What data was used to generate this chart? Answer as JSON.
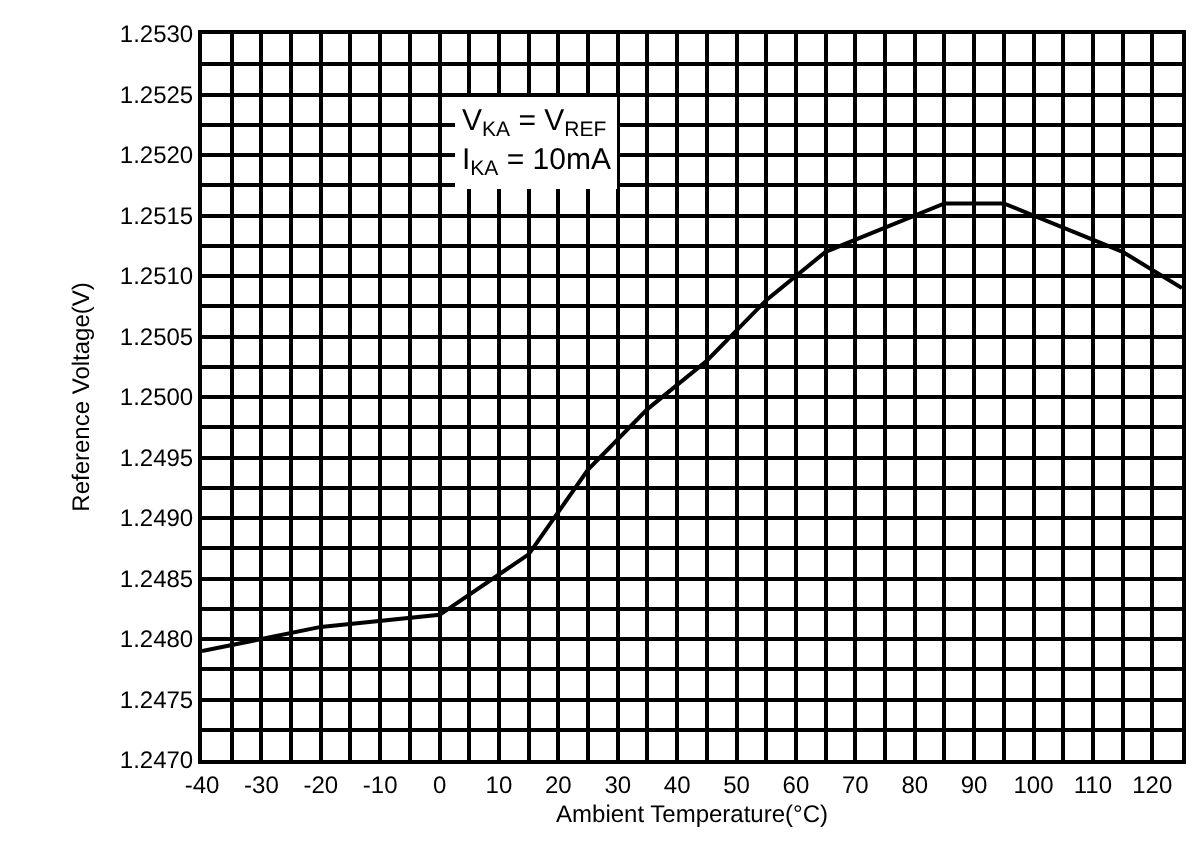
{
  "chart_data": {
    "type": "line",
    "xlabel": "Ambient Temperature(°C)",
    "ylabel": "Reference Voltage(V)",
    "annotations": [
      "V$_{KA}$ = V$_{REF}$\nI$_{KA}$ = 10mA"
    ],
    "x": [
      -40,
      -30,
      -20,
      0,
      15,
      25,
      35,
      45,
      55,
      65,
      85,
      95,
      115,
      125
    ],
    "series": [
      {
        "color": "#000000",
        "values": [
          1.2479,
          1.248,
          1.2481,
          1.2482,
          1.2487,
          1.2494,
          1.2499,
          1.2503,
          1.2508,
          1.2512,
          1.2516,
          1.2516,
          1.2512,
          1.2509
        ]
      }
    ],
    "xlim": [
      -40,
      125
    ],
    "xticks": [
      -40,
      -30,
      -20,
      -10,
      0,
      10,
      20,
      30,
      40,
      50,
      60,
      70,
      80,
      90,
      100,
      110,
      120
    ],
    "ylim": [
      1.247,
      1.253
    ],
    "yticks": [
      {
        "value": 1.247,
        "label": "1.2470"
      },
      {
        "value": 1.2475,
        "label": "1.2475"
      },
      {
        "value": 1.248,
        "label": "1.2480"
      },
      {
        "value": 1.2485,
        "label": "1.2485"
      },
      {
        "value": 1.249,
        "label": "1.2490"
      },
      {
        "value": 1.2495,
        "label": "1.2495"
      },
      {
        "value": 1.25,
        "label": "1.2500"
      },
      {
        "value": 1.2505,
        "label": "1.2505"
      },
      {
        "value": 1.251,
        "label": "1.2510"
      },
      {
        "value": 1.2515,
        "label": "1.2515"
      },
      {
        "value": 1.252,
        "label": "1.2520"
      },
      {
        "value": 1.2525,
        "label": "1.2525"
      },
      {
        "value": 1.253,
        "label": "1.2530"
      }
    ],
    "grid": true,
    "marker": "none",
    "line_style": "solid"
  }
}
